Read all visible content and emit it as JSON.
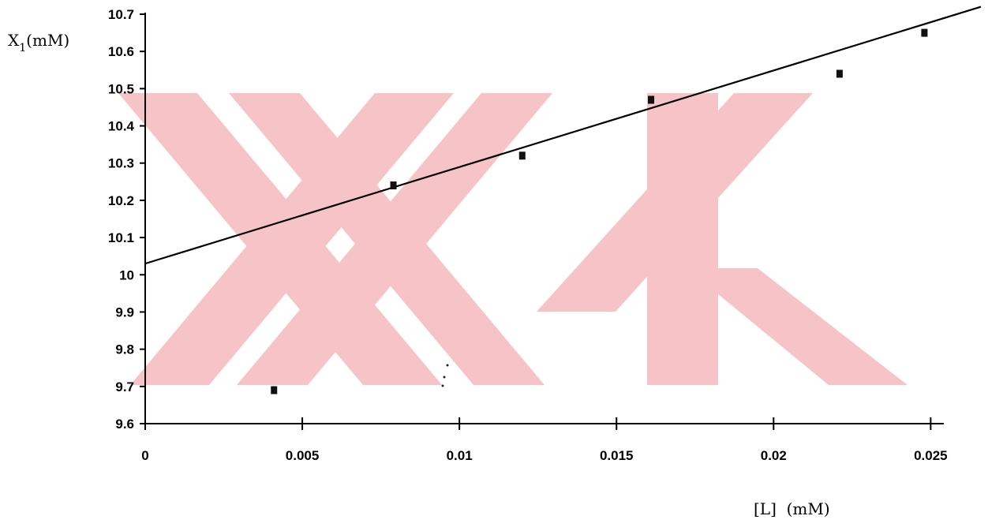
{
  "chart_data": {
    "type": "scatter",
    "title": "",
    "xlabel": "[L]  (mM)",
    "ylabel_main": "X",
    "ylabel_sub": "1",
    "ylabel_unit": "(mM)",
    "xlim": [
      0,
      0.027
    ],
    "ylim": [
      9.6,
      10.7
    ],
    "x_ticks": [
      {
        "value": 0,
        "label": "0"
      },
      {
        "value": 0.005,
        "label": "0.005"
      },
      {
        "value": 0.01,
        "label": "0.01"
      },
      {
        "value": 0.015,
        "label": "0.015"
      },
      {
        "value": 0.02,
        "label": "0.02"
      },
      {
        "value": 0.025,
        "label": "0.025"
      }
    ],
    "y_ticks": [
      {
        "value": 9.6,
        "label": "9.6"
      },
      {
        "value": 9.7,
        "label": "9.7"
      },
      {
        "value": 9.8,
        "label": "9.8"
      },
      {
        "value": 9.9,
        "label": "9.9"
      },
      {
        "value": 10.0,
        "label": "10"
      },
      {
        "value": 10.1,
        "label": "10.1"
      },
      {
        "value": 10.2,
        "label": "10.2"
      },
      {
        "value": 10.3,
        "label": "10.3"
      },
      {
        "value": 10.4,
        "label": "10.4"
      },
      {
        "value": 10.5,
        "label": "10.5"
      },
      {
        "value": 10.6,
        "label": "10.6"
      },
      {
        "value": 10.7,
        "label": "10.7"
      }
    ],
    "points": [
      {
        "x": 0.0041,
        "y": 9.69
      },
      {
        "x": 0.0079,
        "y": 10.24
      },
      {
        "x": 0.012,
        "y": 10.32
      },
      {
        "x": 0.0161,
        "y": 10.47
      },
      {
        "x": 0.0221,
        "y": 10.54
      },
      {
        "x": 0.0248,
        "y": 10.65
      }
    ],
    "fit_line": {
      "x": [
        0,
        0.0266
      ],
      "y": [
        10.03,
        10.72
      ]
    },
    "grid": false,
    "legend": "none",
    "colors": {
      "marker": "#111111",
      "line": "#000000",
      "watermark": "#f6c3c6"
    }
  }
}
